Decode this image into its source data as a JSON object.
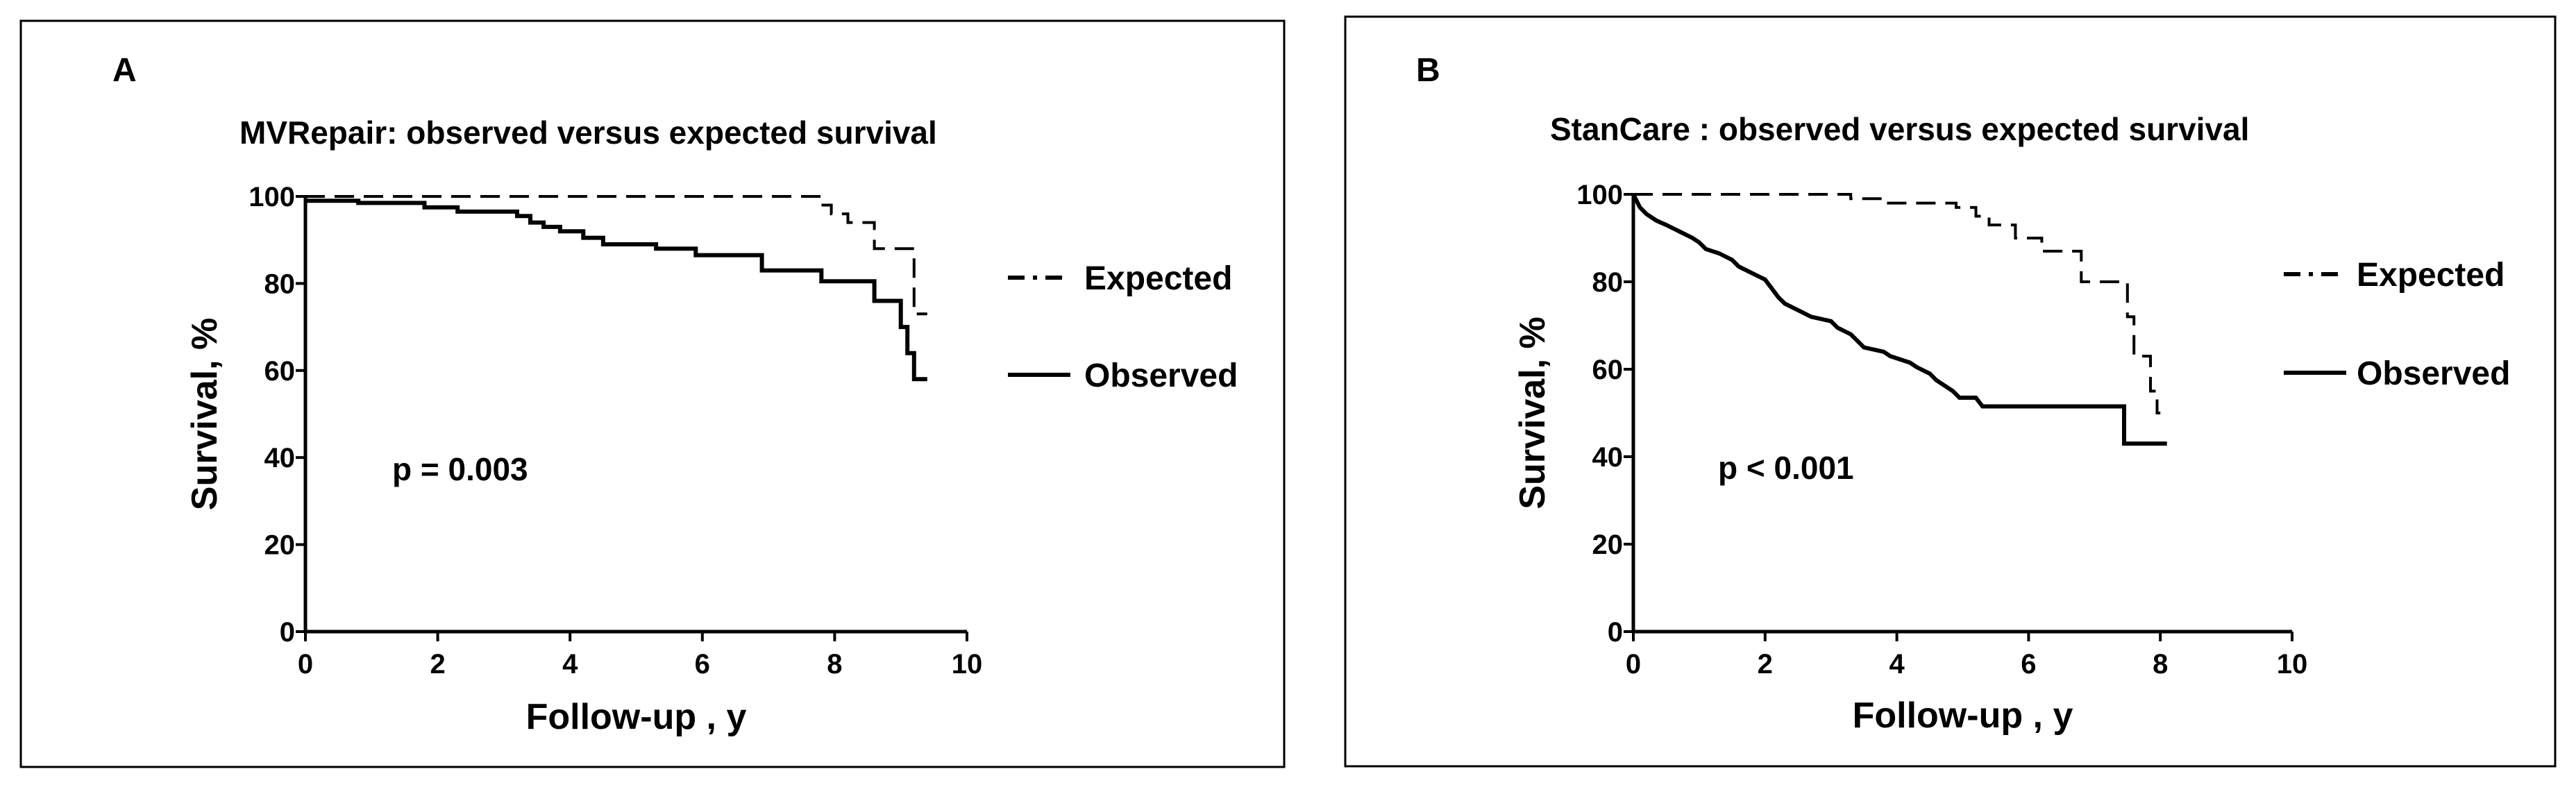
{
  "chart_data": [
    {
      "type": "line",
      "panel_label": "A",
      "title": "MVRepair: observed versus expected survival",
      "xlabel": "Follow-up , y",
      "ylabel": "Survival, %",
      "xlim": [
        0,
        10
      ],
      "ylim": [
        0,
        100
      ],
      "xticks": [
        "0",
        "2",
        "4",
        "6",
        "8",
        "10"
      ],
      "yticks": [
        "0",
        "20",
        "40",
        "60",
        "80",
        "100"
      ],
      "annotation": "p = 0.003",
      "legend_position": "right",
      "series": [
        {
          "name": "Expected",
          "style": "dashed",
          "points": [
            [
              0,
              100
            ],
            [
              7.8,
              100
            ],
            [
              7.8,
              98
            ],
            [
              7.95,
              98
            ],
            [
              7.95,
              96
            ],
            [
              8.2,
              96
            ],
            [
              8.2,
              94
            ],
            [
              8.6,
              94
            ],
            [
              8.6,
              88
            ],
            [
              9.05,
              88
            ],
            [
              9.05,
              88
            ],
            [
              9.2,
              88
            ],
            [
              9.2,
              73
            ],
            [
              9.4,
              73
            ]
          ]
        },
        {
          "name": "Observed",
          "style": "solid",
          "points": [
            [
              0,
              99
            ],
            [
              0.8,
              99
            ],
            [
              0.8,
              98.5
            ],
            [
              1.8,
              98.5
            ],
            [
              1.8,
              97.5
            ],
            [
              2.3,
              97.5
            ],
            [
              2.3,
              96.5
            ],
            [
              3.2,
              96.5
            ],
            [
              3.2,
              95.5
            ],
            [
              3.4,
              95.5
            ],
            [
              3.4,
              94
            ],
            [
              3.6,
              94
            ],
            [
              3.6,
              93
            ],
            [
              3.85,
              93
            ],
            [
              3.85,
              92
            ],
            [
              4.2,
              92
            ],
            [
              4.2,
              90.5
            ],
            [
              4.5,
              90.5
            ],
            [
              4.5,
              89
            ],
            [
              5.3,
              89
            ],
            [
              5.3,
              88
            ],
            [
              5.9,
              88
            ],
            [
              5.9,
              86.5
            ],
            [
              6.9,
              86.5
            ],
            [
              6.9,
              83
            ],
            [
              7.8,
              83
            ],
            [
              7.8,
              80.5
            ],
            [
              8.6,
              80.5
            ],
            [
              8.6,
              76
            ],
            [
              9.0,
              76
            ],
            [
              9.0,
              70
            ],
            [
              9.1,
              70
            ],
            [
              9.1,
              64
            ],
            [
              9.2,
              64
            ],
            [
              9.2,
              58
            ],
            [
              9.4,
              58
            ]
          ]
        }
      ]
    },
    {
      "type": "line",
      "panel_label": "B",
      "title": "StanCare : observed versus expected survival",
      "xlabel": "Follow-up , y",
      "ylabel": "Survival, %",
      "xlim": [
        0,
        10
      ],
      "ylim": [
        0,
        100
      ],
      "xticks": [
        "0",
        "2",
        "4",
        "6",
        "8",
        "10"
      ],
      "yticks": [
        "0",
        "20",
        "40",
        "60",
        "80",
        "100"
      ],
      "annotation": "p < 0.001",
      "legend_position": "right",
      "series": [
        {
          "name": "Expected",
          "style": "dashed",
          "points": [
            [
              0,
              100
            ],
            [
              3.3,
              100
            ],
            [
              3.3,
              99
            ],
            [
              3.8,
              99
            ],
            [
              3.8,
              98
            ],
            [
              4.9,
              98
            ],
            [
              4.9,
              97
            ],
            [
              5.2,
              97
            ],
            [
              5.2,
              95
            ],
            [
              5.4,
              95
            ],
            [
              5.4,
              93
            ],
            [
              5.8,
              93
            ],
            [
              5.8,
              90
            ],
            [
              6.2,
              90
            ],
            [
              6.2,
              87
            ],
            [
              6.8,
              87
            ],
            [
              6.8,
              80
            ],
            [
              7.5,
              80
            ],
            [
              7.5,
              72
            ],
            [
              7.6,
              72
            ],
            [
              7.6,
              63
            ],
            [
              7.85,
              63
            ],
            [
              7.85,
              55
            ],
            [
              7.95,
              55
            ],
            [
              7.95,
              50
            ],
            [
              8.0,
              50
            ]
          ]
        },
        {
          "name": "Observed",
          "style": "solid",
          "points": [
            [
              0,
              100
            ],
            [
              0.1,
              97
            ],
            [
              0.2,
              95.5
            ],
            [
              0.35,
              94
            ],
            [
              0.5,
              93
            ],
            [
              0.7,
              91.5
            ],
            [
              0.9,
              90
            ],
            [
              1.0,
              89
            ],
            [
              1.1,
              87.5
            ],
            [
              1.3,
              86.5
            ],
            [
              1.5,
              85
            ],
            [
              1.6,
              83.5
            ],
            [
              1.8,
              82
            ],
            [
              2.0,
              80.5
            ],
            [
              2.1,
              78.5
            ],
            [
              2.2,
              76.5
            ],
            [
              2.3,
              75
            ],
            [
              2.5,
              73.5
            ],
            [
              2.7,
              72
            ],
            [
              3.0,
              71
            ],
            [
              3.1,
              69.5
            ],
            [
              3.3,
              68
            ],
            [
              3.4,
              66.5
            ],
            [
              3.5,
              65
            ],
            [
              3.8,
              64
            ],
            [
              3.9,
              63
            ],
            [
              4.1,
              62
            ],
            [
              4.2,
              61.5
            ],
            [
              4.3,
              60.5
            ],
            [
              4.5,
              59
            ],
            [
              4.6,
              57.5
            ],
            [
              4.7,
              56.5
            ],
            [
              4.85,
              55
            ],
            [
              4.95,
              53.5
            ],
            [
              5.2,
              53.5
            ],
            [
              5.3,
              51.5
            ],
            [
              7.45,
              51.5
            ],
            [
              7.45,
              43
            ],
            [
              8.1,
              43
            ]
          ]
        }
      ]
    }
  ]
}
